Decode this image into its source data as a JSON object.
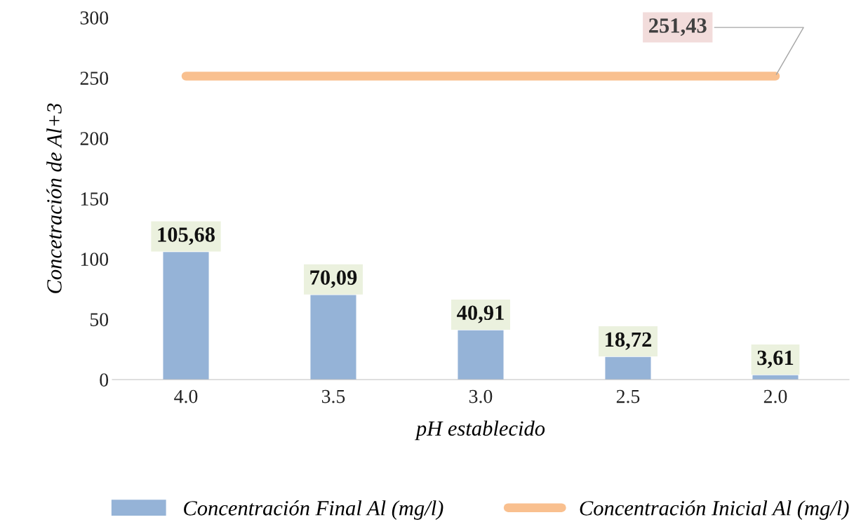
{
  "chart_data": {
    "type": "bar",
    "xlabel": "pH establecido",
    "ylabel": "Concetración de Al+3",
    "categories": [
      "4.0",
      "3.5",
      "3.0",
      "2.5",
      "2.0"
    ],
    "series": [
      {
        "name": "Concentración Final Al (mg/l)",
        "color": "#95b3d7",
        "values": [
          105.68,
          70.09,
          40.91,
          18.72,
          3.61
        ],
        "value_labels": [
          "105,68",
          "70,09",
          "40,91",
          "18,72",
          "3,61"
        ]
      },
      {
        "name": "Concentración Inicial Al (mg/l)",
        "type": "line",
        "color": "#f9c08f",
        "values": [
          251.43,
          251.43,
          251.43,
          251.43,
          251.43
        ],
        "value_labels": [
          null,
          null,
          null,
          null,
          "251,43"
        ]
      }
    ],
    "ylim": [
      0,
      300
    ],
    "yticks": [
      0,
      50,
      100,
      150,
      200,
      250,
      300
    ],
    "grid": false,
    "legend": "bottom",
    "line_style": "solid"
  }
}
